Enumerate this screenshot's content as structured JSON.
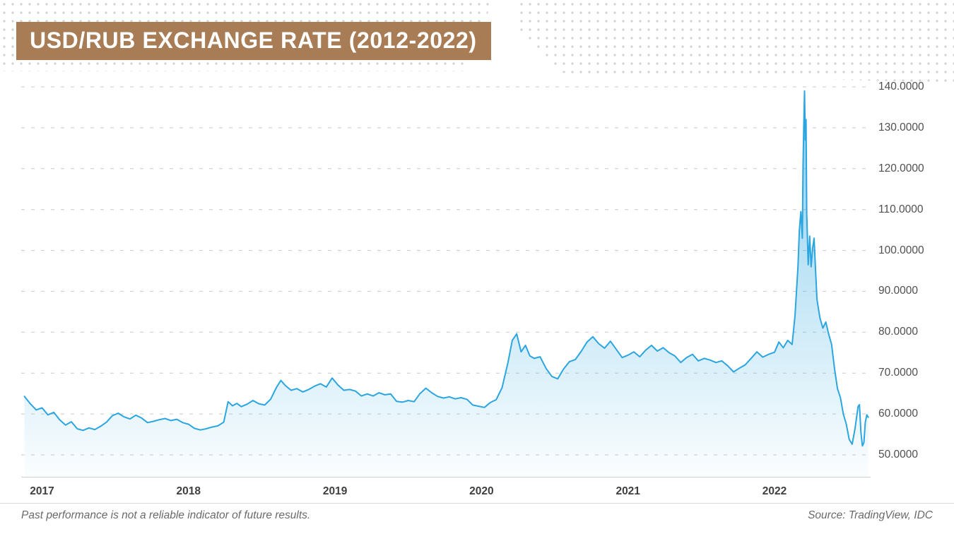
{
  "title": "USD/RUB EXCHANGE RATE (2012-2022)",
  "footer": {
    "disclaimer": "Past performance is not a reliable indicator of future results.",
    "source": "Source: TradingView, IDC"
  },
  "colors": {
    "banner": "#A87D55",
    "line": "#2BA6E0",
    "grid": "#C9C9C9",
    "axis_line": "#CFCFCF",
    "axis_text": "#4F4F4F",
    "footer_text": "#696969"
  },
  "chart_data": {
    "type": "area",
    "title": "USD/RUB EXCHANGE RATE (2012-2022)",
    "xlabel": "",
    "ylabel": "",
    "legend": "none",
    "grid": "horizontal-dashed",
    "ylim": [
      50,
      140
    ],
    "xlim": [
      2016.88,
      2022.65
    ],
    "y_ticks": [
      "140.0000",
      "130.0000",
      "120.0000",
      "110.0000",
      "100.0000",
      "90.0000",
      "80.0000",
      "70.0000",
      "60.0000",
      "50.0000"
    ],
    "y_tick_values": [
      140,
      130,
      120,
      110,
      100,
      90,
      80,
      70,
      60,
      50
    ],
    "x_ticks": [
      "2017",
      "2018",
      "2019",
      "2020",
      "2021",
      "2022"
    ],
    "x_tick_values": [
      2017,
      2018,
      2019,
      2020,
      2021,
      2022
    ],
    "series": [
      {
        "name": "USD/RUB",
        "points": [
          [
            2016.88,
            64.3
          ],
          [
            2016.92,
            62.5
          ],
          [
            2016.96,
            61.0
          ],
          [
            2017.0,
            61.5
          ],
          [
            2017.04,
            59.8
          ],
          [
            2017.08,
            60.4
          ],
          [
            2017.12,
            58.6
          ],
          [
            2017.16,
            57.3
          ],
          [
            2017.2,
            58.1
          ],
          [
            2017.24,
            56.4
          ],
          [
            2017.28,
            56.0
          ],
          [
            2017.32,
            56.6
          ],
          [
            2017.36,
            56.2
          ],
          [
            2017.4,
            57.0
          ],
          [
            2017.44,
            58.0
          ],
          [
            2017.48,
            59.6
          ],
          [
            2017.52,
            60.2
          ],
          [
            2017.56,
            59.3
          ],
          [
            2017.6,
            58.8
          ],
          [
            2017.64,
            59.7
          ],
          [
            2017.68,
            59.0
          ],
          [
            2017.72,
            57.9
          ],
          [
            2017.76,
            58.2
          ],
          [
            2017.8,
            58.6
          ],
          [
            2017.84,
            58.9
          ],
          [
            2017.88,
            58.4
          ],
          [
            2017.92,
            58.7
          ],
          [
            2017.96,
            57.9
          ],
          [
            2018.0,
            57.5
          ],
          [
            2018.04,
            56.5
          ],
          [
            2018.08,
            56.1
          ],
          [
            2018.12,
            56.4
          ],
          [
            2018.16,
            56.8
          ],
          [
            2018.2,
            57.1
          ],
          [
            2018.24,
            58.0
          ],
          [
            2018.27,
            63.0
          ],
          [
            2018.3,
            62.0
          ],
          [
            2018.33,
            62.6
          ],
          [
            2018.36,
            61.8
          ],
          [
            2018.4,
            62.4
          ],
          [
            2018.44,
            63.3
          ],
          [
            2018.48,
            62.5
          ],
          [
            2018.52,
            62.2
          ],
          [
            2018.56,
            63.6
          ],
          [
            2018.6,
            66.5
          ],
          [
            2018.63,
            68.2
          ],
          [
            2018.66,
            67.0
          ],
          [
            2018.7,
            65.8
          ],
          [
            2018.74,
            66.2
          ],
          [
            2018.78,
            65.4
          ],
          [
            2018.82,
            66.0
          ],
          [
            2018.86,
            66.8
          ],
          [
            2018.9,
            67.4
          ],
          [
            2018.94,
            66.6
          ],
          [
            2018.98,
            68.8
          ],
          [
            2019.02,
            67.1
          ],
          [
            2019.06,
            65.8
          ],
          [
            2019.1,
            66.0
          ],
          [
            2019.14,
            65.6
          ],
          [
            2019.18,
            64.4
          ],
          [
            2019.22,
            64.9
          ],
          [
            2019.26,
            64.4
          ],
          [
            2019.3,
            65.2
          ],
          [
            2019.34,
            64.7
          ],
          [
            2019.38,
            64.9
          ],
          [
            2019.42,
            63.1
          ],
          [
            2019.46,
            62.9
          ],
          [
            2019.5,
            63.3
          ],
          [
            2019.54,
            63.0
          ],
          [
            2019.58,
            65.0
          ],
          [
            2019.62,
            66.3
          ],
          [
            2019.66,
            65.2
          ],
          [
            2019.7,
            64.3
          ],
          [
            2019.74,
            63.9
          ],
          [
            2019.78,
            64.2
          ],
          [
            2019.82,
            63.7
          ],
          [
            2019.86,
            64.0
          ],
          [
            2019.9,
            63.6
          ],
          [
            2019.94,
            62.2
          ],
          [
            2019.98,
            61.9
          ],
          [
            2020.02,
            61.6
          ],
          [
            2020.06,
            62.8
          ],
          [
            2020.1,
            63.5
          ],
          [
            2020.14,
            66.4
          ],
          [
            2020.18,
            72.5
          ],
          [
            2020.21,
            78.0
          ],
          [
            2020.24,
            79.6
          ],
          [
            2020.27,
            75.2
          ],
          [
            2020.3,
            76.8
          ],
          [
            2020.33,
            74.2
          ],
          [
            2020.36,
            73.6
          ],
          [
            2020.4,
            74.0
          ],
          [
            2020.44,
            71.2
          ],
          [
            2020.48,
            69.2
          ],
          [
            2020.52,
            68.6
          ],
          [
            2020.56,
            71.0
          ],
          [
            2020.6,
            72.8
          ],
          [
            2020.64,
            73.3
          ],
          [
            2020.68,
            75.3
          ],
          [
            2020.72,
            77.6
          ],
          [
            2020.76,
            78.9
          ],
          [
            2020.8,
            77.2
          ],
          [
            2020.84,
            76.1
          ],
          [
            2020.88,
            77.8
          ],
          [
            2020.92,
            75.8
          ],
          [
            2020.96,
            73.8
          ],
          [
            2021.0,
            74.4
          ],
          [
            2021.04,
            75.2
          ],
          [
            2021.08,
            74.0
          ],
          [
            2021.12,
            75.6
          ],
          [
            2021.16,
            76.8
          ],
          [
            2021.2,
            75.4
          ],
          [
            2021.24,
            76.2
          ],
          [
            2021.28,
            75.0
          ],
          [
            2021.32,
            74.2
          ],
          [
            2021.36,
            72.6
          ],
          [
            2021.4,
            73.8
          ],
          [
            2021.44,
            74.6
          ],
          [
            2021.48,
            73.0
          ],
          [
            2021.52,
            73.6
          ],
          [
            2021.56,
            73.2
          ],
          [
            2021.6,
            72.6
          ],
          [
            2021.64,
            73.0
          ],
          [
            2021.68,
            71.8
          ],
          [
            2021.72,
            70.3
          ],
          [
            2021.76,
            71.2
          ],
          [
            2021.8,
            72.0
          ],
          [
            2021.84,
            73.6
          ],
          [
            2021.88,
            75.2
          ],
          [
            2021.92,
            73.9
          ],
          [
            2021.96,
            74.6
          ],
          [
            2022.0,
            75.1
          ],
          [
            2022.03,
            77.6
          ],
          [
            2022.06,
            76.2
          ],
          [
            2022.09,
            78.0
          ],
          [
            2022.12,
            77.0
          ],
          [
            2022.14,
            84.0
          ],
          [
            2022.16,
            96.0
          ],
          [
            2022.17,
            105.0
          ],
          [
            2022.18,
            109.5
          ],
          [
            2022.19,
            103.0
          ],
          [
            2022.195,
            121.0
          ],
          [
            2022.2,
            131.0
          ],
          [
            2022.205,
            139.0
          ],
          [
            2022.21,
            127.0
          ],
          [
            2022.215,
            132.0
          ],
          [
            2022.22,
            109.0
          ],
          [
            2022.23,
            96.5
          ],
          [
            2022.24,
            103.5
          ],
          [
            2022.25,
            96.0
          ],
          [
            2022.26,
            100.5
          ],
          [
            2022.27,
            103.0
          ],
          [
            2022.28,
            95.5
          ],
          [
            2022.29,
            88.0
          ],
          [
            2022.31,
            83.5
          ],
          [
            2022.33,
            81.0
          ],
          [
            2022.35,
            82.5
          ],
          [
            2022.37,
            79.5
          ],
          [
            2022.39,
            77.0
          ],
          [
            2022.41,
            71.0
          ],
          [
            2022.43,
            66.2
          ],
          [
            2022.45,
            64.0
          ],
          [
            2022.47,
            60.0
          ],
          [
            2022.49,
            57.5
          ],
          [
            2022.51,
            53.8
          ],
          [
            2022.53,
            52.6
          ],
          [
            2022.55,
            56.5
          ],
          [
            2022.57,
            61.8
          ],
          [
            2022.58,
            62.3
          ],
          [
            2022.59,
            55.5
          ],
          [
            2022.6,
            52.2
          ],
          [
            2022.61,
            53.0
          ],
          [
            2022.62,
            58.0
          ],
          [
            2022.63,
            59.8
          ],
          [
            2022.64,
            59.2
          ]
        ]
      }
    ]
  }
}
